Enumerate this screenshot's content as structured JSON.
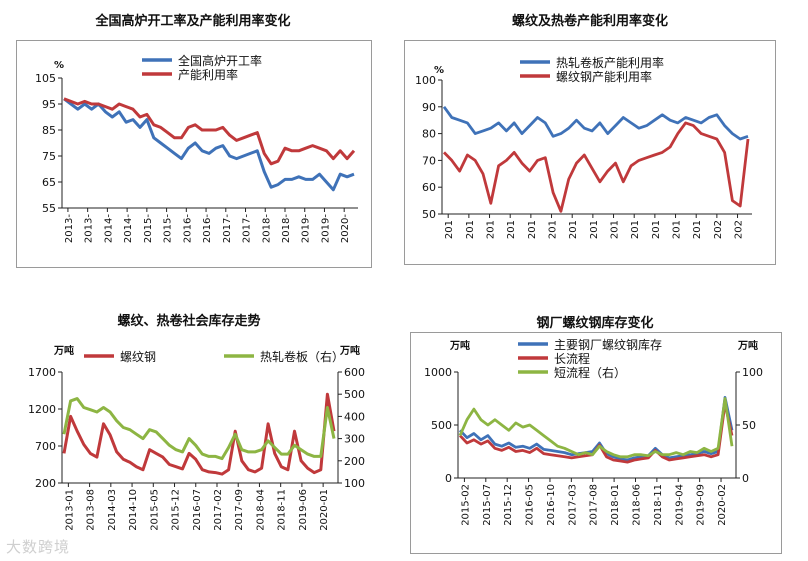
{
  "watermark": "大数跨境",
  "chart_data": [
    {
      "type": "line",
      "title": "全国高炉开工率及产能利用率变化",
      "unit_left": "%",
      "ylim": [
        55,
        105
      ],
      "yticks": [
        "55",
        "65",
        "75",
        "85",
        "95",
        "105"
      ],
      "xticks": [
        "2013-",
        "2013-",
        "2014-",
        "2014-",
        "2015-",
        "2015-",
        "2016-",
        "2016-",
        "2017-",
        "2017-",
        "2018-",
        "2018-",
        "2019-",
        "2019-",
        "2020-"
      ],
      "series": [
        {
          "name": "全国高炉开工率",
          "color": "#3f72b8",
          "axis": "left",
          "values": [
            97,
            95,
            93,
            95,
            93,
            95,
            92,
            90,
            92,
            88,
            89,
            86,
            89,
            82,
            80,
            78,
            76,
            74,
            78,
            80,
            77,
            76,
            78,
            79,
            75,
            74,
            75,
            76,
            77,
            69,
            63,
            64,
            66,
            66,
            67,
            66,
            66,
            68,
            65,
            62,
            68,
            67,
            68
          ]
        },
        {
          "name": "产能利用率",
          "color": "#c0393b",
          "axis": "left",
          "values": [
            97,
            96,
            95,
            96,
            95,
            95,
            94,
            93,
            95,
            94,
            93,
            90,
            91,
            87,
            86,
            84,
            82,
            82,
            86,
            87,
            85,
            85,
            85,
            86,
            83,
            81,
            82,
            83,
            84,
            76,
            72,
            73,
            78,
            77,
            77,
            78,
            79,
            78,
            77,
            74,
            77,
            74,
            77
          ]
        }
      ]
    },
    {
      "type": "line",
      "title": "螺纹及热卷产能利用率变化",
      "unit_left": "%",
      "ylim": [
        50,
        100
      ],
      "yticks": [
        "50",
        "60",
        "70",
        "80",
        "90",
        "100"
      ],
      "xticks": [
        "201",
        "201",
        "201",
        "201",
        "201",
        "201",
        "201",
        "201",
        "201",
        "201",
        "201",
        "201",
        "201",
        "202",
        "202"
      ],
      "series": [
        {
          "name": "热轧卷板产能利用率",
          "color": "#3f72b8",
          "axis": "left",
          "values": [
            90,
            86,
            85,
            84,
            80,
            81,
            82,
            84,
            81,
            84,
            80,
            83,
            86,
            84,
            79,
            80,
            82,
            85,
            82,
            81,
            84,
            80,
            83,
            86,
            84,
            82,
            83,
            85,
            87,
            85,
            84,
            86,
            85,
            84,
            86,
            87,
            83,
            80,
            78,
            79
          ]
        },
        {
          "name": "螺纹钢产能利用率",
          "color": "#c0393b",
          "axis": "left",
          "values": [
            73,
            70,
            66,
            72,
            70,
            65,
            54,
            68,
            70,
            73,
            69,
            66,
            70,
            71,
            58,
            51,
            63,
            69,
            72,
            67,
            62,
            66,
            69,
            62,
            68,
            70,
            71,
            72,
            73,
            75,
            80,
            84,
            83,
            80,
            79,
            78,
            73,
            55,
            53,
            78
          ]
        }
      ]
    },
    {
      "type": "line",
      "title": "螺纹、热卷社会库存走势",
      "unit_left": "万吨",
      "unit_right": "万吨",
      "ylim_left": [
        200,
        1700
      ],
      "ylim_right": [
        100,
        600
      ],
      "yticks_left": [
        "200",
        "700",
        "1200",
        "1700"
      ],
      "yticks_right": [
        "100",
        "200",
        "300",
        "400",
        "500",
        "600"
      ],
      "xticks": [
        "2013-01",
        "2013-08",
        "2014-03",
        "2014-10",
        "2015-05",
        "2015-12",
        "2016-07",
        "2017-02",
        "2017-09",
        "2018-04",
        "2018-11",
        "2019-06",
        "2020-01"
      ],
      "series": [
        {
          "name": "螺纹钢",
          "color": "#c0393b",
          "axis": "left",
          "values": [
            600,
            1100,
            900,
            720,
            600,
            550,
            1000,
            850,
            620,
            520,
            480,
            420,
            380,
            650,
            600,
            550,
            450,
            420,
            390,
            600,
            520,
            380,
            350,
            340,
            320,
            380,
            900,
            500,
            380,
            350,
            400,
            1000,
            600,
            420,
            380,
            900,
            500,
            400,
            340,
            380,
            1400,
            900
          ]
        },
        {
          "name": "热轧卷板（右）",
          "color": "#8db543",
          "axis": "right",
          "values": [
            320,
            470,
            480,
            440,
            430,
            420,
            440,
            420,
            380,
            350,
            340,
            320,
            300,
            340,
            330,
            300,
            270,
            250,
            240,
            300,
            270,
            230,
            220,
            220,
            210,
            260,
            320,
            250,
            240,
            240,
            250,
            290,
            260,
            230,
            230,
            270,
            250,
            230,
            220,
            220,
            440,
            300
          ]
        }
      ]
    },
    {
      "type": "line",
      "title": "钢厂螺纹钢库存变化",
      "unit_left": "万吨",
      "unit_right": "万吨",
      "ylim_left": [
        0,
        1000
      ],
      "ylim_right": [
        0,
        100
      ],
      "yticks_left": [
        "0",
        "500",
        "1000"
      ],
      "yticks_right": [
        "0",
        "50",
        "100"
      ],
      "xticks": [
        "2015-02",
        "2015-07",
        "2015-12",
        "2016-05",
        "2016-10",
        "2017-03",
        "2017-08",
        "2018-01",
        "2018-06",
        "2018-11",
        "2019-04",
        "2019-09",
        "2020-02"
      ],
      "series": [
        {
          "name": "主要钢厂螺纹钢库存",
          "color": "#3f72b8",
          "axis": "left",
          "values": [
            450,
            380,
            420,
            360,
            400,
            320,
            300,
            330,
            290,
            300,
            280,
            320,
            270,
            260,
            250,
            240,
            220,
            230,
            240,
            250,
            330,
            230,
            200,
            180,
            170,
            190,
            200,
            210,
            280,
            220,
            190,
            200,
            210,
            220,
            230,
            250,
            230,
            250,
            760,
            450
          ]
        },
        {
          "name": "长流程",
          "color": "#c0393b",
          "axis": "left",
          "values": [
            400,
            330,
            360,
            320,
            350,
            280,
            260,
            290,
            250,
            260,
            240,
            280,
            230,
            220,
            210,
            200,
            190,
            200,
            210,
            220,
            310,
            200,
            170,
            160,
            150,
            170,
            180,
            190,
            260,
            200,
            170,
            180,
            190,
            200,
            210,
            220,
            200,
            220,
            700,
            400
          ]
        },
        {
          "name": "短流程（右）",
          "color": "#8db543",
          "axis": "right",
          "values": [
            40,
            55,
            65,
            55,
            50,
            55,
            50,
            45,
            52,
            48,
            50,
            45,
            40,
            35,
            30,
            28,
            25,
            22,
            24,
            22,
            30,
            25,
            22,
            20,
            20,
            22,
            22,
            21,
            25,
            22,
            22,
            24,
            22,
            25,
            24,
            28,
            25,
            28,
            75,
            30
          ]
        }
      ]
    }
  ]
}
